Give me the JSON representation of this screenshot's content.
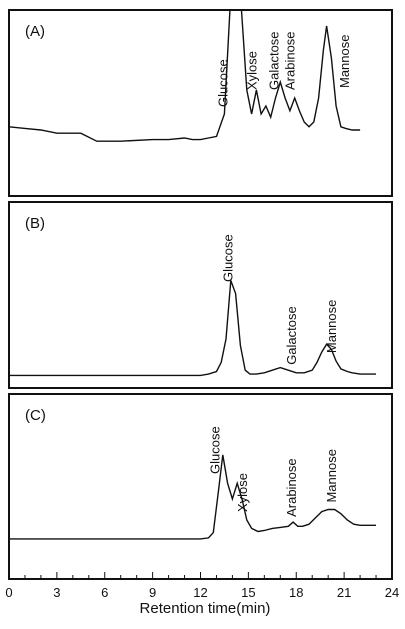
{
  "chart_data": {
    "type": "line",
    "xlabel": "Retention time(min)",
    "x_ticks": [
      0,
      3,
      6,
      9,
      12,
      15,
      18,
      21,
      24
    ],
    "xlim": [
      0,
      24
    ],
    "panels": [
      {
        "label": "(A)",
        "series": [
          {
            "x": [
              0,
              1,
              2,
              3,
              4.5,
              5.5,
              7,
              9,
              10,
              11,
              11.5,
              12,
              12.5,
              13,
              13.5,
              13.9,
              14.2,
              14.5,
              14.6,
              14.9,
              15.2,
              15.5,
              15.8,
              16.1,
              16.4,
              16.7,
              17.0,
              17.3,
              17.6,
              17.9,
              18.2,
              18.5,
              18.8,
              19.1,
              19.4,
              19.7,
              19.9,
              20.2,
              20.5,
              20.8,
              21.1,
              21.5,
              22
            ],
            "y": [
              0.22,
              0.21,
              0.2,
              0.18,
              0.18,
              0.13,
              0.13,
              0.14,
              0.14,
              0.15,
              0.14,
              0.14,
              0.15,
              0.16,
              0.3,
              1.05,
              1.05,
              1.05,
              0.9,
              0.45,
              0.3,
              0.45,
              0.3,
              0.35,
              0.28,
              0.4,
              0.5,
              0.4,
              0.32,
              0.4,
              0.32,
              0.25,
              0.22,
              0.25,
              0.4,
              0.7,
              0.85,
              0.65,
              0.35,
              0.22,
              0.21,
              0.2,
              0.2
            ]
          }
        ],
        "annotations": [
          {
            "text": "Glucose",
            "x": 13.7
          },
          {
            "text": "Xylose",
            "x": 15.5
          },
          {
            "text": "Galactose",
            "x": 16.9
          },
          {
            "text": "Arabinose",
            "x": 17.9
          },
          {
            "text": "Mannose",
            "x": 21.3
          }
        ]
      },
      {
        "label": "(B)",
        "series": [
          {
            "x": [
              0,
              3,
              6,
              9,
              11,
              12,
              12.5,
              13,
              13.3,
              13.6,
              13.9,
              14.2,
              14.5,
              14.8,
              15.1,
              15.5,
              16,
              16.5,
              17,
              17.5,
              18,
              18.5,
              19,
              19.3,
              19.6,
              19.9,
              20.2,
              20.5,
              20.8,
              21.2,
              21.5,
              22,
              23
            ],
            "y": [
              0.02,
              0.02,
              0.02,
              0.02,
              0.02,
              0.02,
              0.03,
              0.05,
              0.12,
              0.3,
              0.75,
              0.65,
              0.25,
              0.06,
              0.03,
              0.03,
              0.04,
              0.06,
              0.08,
              0.06,
              0.04,
              0.04,
              0.06,
              0.12,
              0.2,
              0.26,
              0.22,
              0.13,
              0.07,
              0.05,
              0.04,
              0.03,
              0.03
            ]
          }
        ],
        "annotations": [
          {
            "text": "Glucose",
            "x": 14.0
          },
          {
            "text": "Galactose",
            "x": 18.0
          },
          {
            "text": "Mannose",
            "x": 20.5
          }
        ]
      },
      {
        "label": "(C)",
        "series": [
          {
            "x": [
              0,
              3,
              6,
              9,
              12,
              12.5,
              12.8,
              13.1,
              13.4,
              13.7,
              14.0,
              14.3,
              14.6,
              14.9,
              15.2,
              15.6,
              16,
              16.5,
              17,
              17.5,
              17.8,
              18.1,
              18.4,
              18.8,
              19.2,
              19.6,
              20,
              20.4,
              20.8,
              21.2,
              21.6,
              22,
              23
            ],
            "y": [
              0.02,
              0.02,
              0.02,
              0.02,
              0.02,
              0.03,
              0.08,
              0.45,
              0.82,
              0.55,
              0.4,
              0.55,
              0.4,
              0.2,
              0.12,
              0.09,
              0.1,
              0.12,
              0.13,
              0.14,
              0.18,
              0.14,
              0.14,
              0.16,
              0.22,
              0.28,
              0.3,
              0.3,
              0.26,
              0.2,
              0.16,
              0.15,
              0.15
            ]
          }
        ],
        "annotations": [
          {
            "text": "Glucose",
            "x": 13.2
          },
          {
            "text": "Xylose",
            "x": 14.9
          },
          {
            "text": "Arabinose",
            "x": 18.0
          },
          {
            "text": "Mannose",
            "x": 20.5
          }
        ]
      }
    ]
  }
}
